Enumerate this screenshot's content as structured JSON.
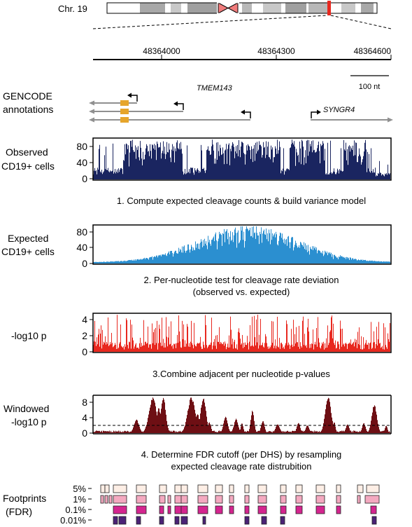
{
  "chromosome": {
    "label": "Chr. 19"
  },
  "coordinates": {
    "ticks": [
      "48364000",
      "48364300",
      "48364600"
    ],
    "scale_bar": "100 nt"
  },
  "annotations": {
    "label_line1": "GENCODE",
    "label_line2": "annotations",
    "genes": [
      "TMEM143",
      "SYNGR4"
    ]
  },
  "tracks": {
    "observed": {
      "label_line1": "Observed",
      "label_line2": "CD19+ cells",
      "yticks": [
        "80",
        "40",
        "0"
      ],
      "ymax": 95,
      "color": "#1a2560"
    },
    "expected": {
      "label_line1": "Expected",
      "label_line2": "CD19+ cells",
      "yticks": [
        "80",
        "40",
        "0"
      ],
      "ymax": 95,
      "color": "#2b8fd0"
    },
    "pvalue": {
      "label": "-log10 p",
      "yticks": [
        "4",
        "2",
        "0"
      ],
      "ymax": 4.7,
      "color": "#e8281f"
    },
    "windowed": {
      "label_line1": "Windowed",
      "label_line2": "-log10 p",
      "yticks": [
        "8",
        "4",
        "0"
      ],
      "ymax": 10,
      "threshold": 2,
      "color": "#6e0f14"
    }
  },
  "steps": {
    "step1": "1. Compute expected cleavage counts & build variance model",
    "step2_line1": "2. Per-nucleotide test for cleavage rate deviation",
    "step2_line2": "(observed vs. expected)",
    "step3": "3.Combine adjacent per nucleotide p-values",
    "step4_line1": "4. Determine FDR cutoff (per DHS) by resampling",
    "step4_line2": "expected cleavage rate distrubition"
  },
  "footprints": {
    "label_line1": "Footprints",
    "label_line2": "(FDR)",
    "levels": [
      {
        "label": "5%",
        "color": "#fdeee5"
      },
      {
        "label": "1%",
        "color": "#f4a9c0"
      },
      {
        "label": "0.1%",
        "color": "#d4258f"
      },
      {
        "label": "0.01%",
        "color": "#4b2276"
      }
    ]
  }
}
